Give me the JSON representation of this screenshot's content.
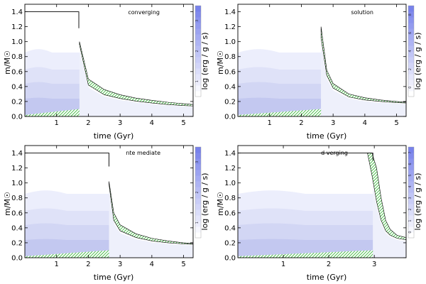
{
  "chart_data": [
    {
      "type": "area",
      "title": "converging",
      "xlabel": "time (Gyr)",
      "ylabel": "m/M☉",
      "colorbar_label": "log (erg / g / s)",
      "colorbar_ticks": [
        "1",
        "2",
        "3"
      ],
      "xlim": [
        0,
        5.3
      ],
      "ylim": [
        0,
        1.5
      ],
      "xticks": [
        1,
        2,
        3,
        4,
        5
      ],
      "xtick_labels": [
        "1",
        "2",
        "3",
        "4",
        "5"
      ],
      "yticks": [
        0.0,
        0.2,
        0.4,
        0.6,
        0.8,
        1.0,
        1.2,
        1.4
      ],
      "ytick_labels": [
        "0.0",
        "0.2",
        "0.4",
        "0.6",
        "0.8",
        "1.0",
        "1.2",
        "1.4"
      ],
      "total_mass": {
        "x": [
          0,
          1.7,
          1.7
        ],
        "y": [
          1.4,
          1.4,
          1.18
        ]
      },
      "t_transition": 1.72,
      "hatched_band": {
        "x": [
          1.72,
          2.0,
          2.5,
          3.0,
          3.5,
          4.0,
          4.5,
          5.0,
          5.3
        ],
        "lower": [
          0.96,
          0.42,
          0.29,
          0.24,
          0.205,
          0.18,
          0.16,
          0.145,
          0.14
        ],
        "upper": [
          1.0,
          0.5,
          0.36,
          0.29,
          0.245,
          0.215,
          0.19,
          0.17,
          0.16
        ]
      },
      "core_hatch": {
        "x": [
          0,
          1.72
        ],
        "y": [
          0.02,
          0.1
        ]
      }
    },
    {
      "type": "area",
      "title": "solution",
      "xlabel": "time (Gyr)",
      "ylabel": "m/M☉",
      "colorbar_label": "log (erg / g / s)",
      "colorbar_ticks": [
        "0",
        "2",
        "4",
        "6",
        "8"
      ],
      "xlim": [
        0,
        5.3
      ],
      "ylim": [
        0,
        1.5
      ],
      "xticks": [
        1,
        2,
        3,
        4,
        5
      ],
      "xtick_labels": [
        "1",
        "2",
        "3",
        "4",
        "5"
      ],
      "yticks": [
        0.0,
        0.2,
        0.4,
        0.6,
        0.8,
        1.0,
        1.2,
        1.4
      ],
      "ytick_labels": [
        "0.0",
        "0.2",
        "0.4",
        "0.6",
        "0.8",
        "1.0",
        "1.2",
        "1.4"
      ],
      "total_mass": {
        "x": [
          2.6,
          2.6
        ],
        "y": [
          1.2,
          1.2
        ]
      },
      "t_transition": 2.62,
      "hatched_band": {
        "x": [
          2.62,
          2.8,
          3.0,
          3.5,
          4.0,
          4.5,
          5.0,
          5.3
        ],
        "lower": [
          1.05,
          0.55,
          0.38,
          0.26,
          0.22,
          0.2,
          0.185,
          0.18
        ],
        "upper": [
          1.2,
          0.62,
          0.44,
          0.3,
          0.25,
          0.22,
          0.2,
          0.19
        ]
      },
      "core_hatch": {
        "x": [
          0,
          2.62
        ],
        "y": [
          0.02,
          0.1
        ]
      }
    },
    {
      "type": "area",
      "title": "nte mediate",
      "xlabel": "time (Gyr)",
      "ylabel": "m/M☉",
      "colorbar_label": "log (erg / g / s)",
      "colorbar_ticks": [
        "1",
        "2",
        "3"
      ],
      "xlim": [
        0,
        5.3
      ],
      "ylim": [
        0,
        1.5
      ],
      "xticks": [
        1,
        2,
        3,
        4,
        5
      ],
      "xtick_labels": [
        "1",
        "2",
        "3",
        "4",
        "5"
      ],
      "yticks": [
        0.0,
        0.2,
        0.4,
        0.6,
        0.8,
        1.0,
        1.2,
        1.4
      ],
      "ytick_labels": [
        "0.0",
        "0.2",
        "0.4",
        "0.6",
        "0.8",
        "1.0",
        "1.2",
        "1.4"
      ],
      "total_mass": {
        "x": [
          0,
          2.65,
          2.65
        ],
        "y": [
          1.4,
          1.4,
          1.22
        ]
      },
      "t_transition": 2.65,
      "hatched_band": {
        "x": [
          2.65,
          2.8,
          3.0,
          3.5,
          4.0,
          4.5,
          5.0,
          5.3
        ],
        "lower": [
          0.98,
          0.5,
          0.36,
          0.27,
          0.225,
          0.2,
          0.185,
          0.18
        ],
        "upper": [
          1.02,
          0.6,
          0.44,
          0.32,
          0.26,
          0.225,
          0.2,
          0.19
        ]
      },
      "core_hatch": {
        "x": [
          0,
          2.65
        ],
        "y": [
          0.02,
          0.1
        ]
      }
    },
    {
      "type": "area",
      "title": "d verging",
      "xlabel": "time (Gyr)",
      "ylabel": "m/M☉",
      "colorbar_label": "log (erg / g / s)",
      "colorbar_ticks": [
        "0",
        "1",
        "2",
        "3",
        "4",
        "5",
        "6",
        "7"
      ],
      "xlim": [
        0,
        3.7
      ],
      "ylim": [
        0,
        1.5
      ],
      "xticks": [
        1,
        2,
        3
      ],
      "xtick_labels": [
        "1",
        "2",
        "3"
      ],
      "yticks": [
        0.0,
        0.2,
        0.4,
        0.6,
        0.8,
        1.0,
        1.2,
        1.4
      ],
      "ytick_labels": [
        "0.0",
        "0.2",
        "0.4",
        "0.6",
        "0.8",
        "1.0",
        "1.2",
        "1.4"
      ],
      "total_mass": {
        "x": [
          0,
          2.97,
          2.97
        ],
        "y": [
          1.4,
          1.4,
          1.3
        ]
      },
      "t_transition": 2.97,
      "hatched_band": {
        "x": [
          2.85,
          2.95,
          3.05,
          3.15,
          3.25,
          3.35,
          3.5,
          3.7
        ],
        "lower": [
          1.4,
          1.1,
          0.75,
          0.5,
          0.36,
          0.3,
          0.26,
          0.24
        ],
        "upper": [
          1.4,
          1.4,
          1.2,
          0.8,
          0.5,
          0.38,
          0.3,
          0.27
        ]
      },
      "core_hatch": {
        "x": [
          0,
          2.97
        ],
        "y": [
          0.02,
          0.1
        ]
      }
    }
  ]
}
